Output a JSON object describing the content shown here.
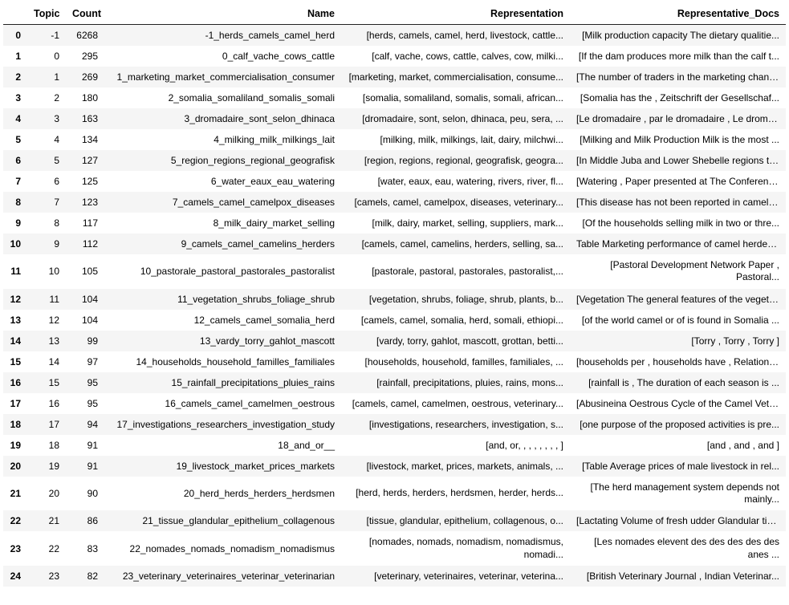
{
  "table": {
    "columns": [
      "",
      "Topic",
      "Count",
      "Name",
      "Representation",
      "Representative_Docs"
    ],
    "header_fontsize": 12.5,
    "cell_fontsize": 12,
    "row_even_bg": "#f5f5f5",
    "row_odd_bg": "#ffffff",
    "header_border_color": "#222222",
    "text_color": "#000000",
    "rows": [
      {
        "idx": "0",
        "topic": "-1",
        "count": "6268",
        "name": "-1_herds_camels_camel_herd",
        "rep": "[herds, camels, camel, herd, livestock, cattle...",
        "docs": "[Milk production capacity The dietary qualitie...",
        "wrap": false
      },
      {
        "idx": "1",
        "topic": "0",
        "count": "295",
        "name": "0_calf_vache_cows_cattle",
        "rep": "[calf, vache, cows, cattle, calves, cow, milki...",
        "docs": "[If the dam produces more milk than the calf t...",
        "wrap": false
      },
      {
        "idx": "2",
        "topic": "1",
        "count": "269",
        "name": "1_marketing_market_commercialisation_consumer",
        "rep": "[marketing, market, commercialisation, consume...",
        "docs": "[The number of traders in the marketing channe...",
        "wrap": false
      },
      {
        "idx": "3",
        "topic": "2",
        "count": "180",
        "name": "2_somalia_somaliland_somalis_somali",
        "rep": "[somalia, somaliland, somalis, somali, african...",
        "docs": "[Somalia has the , Zeitschrift der Gesellschaf...",
        "wrap": false
      },
      {
        "idx": "4",
        "topic": "3",
        "count": "163",
        "name": "3_dromadaire_sont_selon_dhinaca",
        "rep": "[dromadaire, sont, selon, dhinaca, peu, sera, ...",
        "docs": "[Le dromadaire , par le dromadaire , Le dromad...",
        "wrap": false
      },
      {
        "idx": "5",
        "topic": "4",
        "count": "134",
        "name": "4_milking_milk_milkings_lait",
        "rep": "[milking, milk, milkings, lait, dairy, milchwi...",
        "docs": "[Milking and Milk Production Milk is the most ...",
        "wrap": false
      },
      {
        "idx": "6",
        "topic": "5",
        "count": "127",
        "name": "5_region_regions_regional_geografisk",
        "rep": "[region, regions, regional, geografisk, geogra...",
        "docs": "[In Middle Juba and Lower Shebelle regions thi...",
        "wrap": false
      },
      {
        "idx": "7",
        "topic": "6",
        "count": "125",
        "name": "6_water_eaux_eau_watering",
        "rep": "[water, eaux, eau, watering, rivers, river, fl...",
        "docs": "[Watering , Paper presented at The Conference ...",
        "wrap": false
      },
      {
        "idx": "8",
        "topic": "7",
        "count": "123",
        "name": "7_camels_camel_camelpox_diseases",
        "rep": "[camels, camel, camelpox, diseases, veterinary...",
        "docs": "[This disease has not been reported in camels ...",
        "wrap": false
      },
      {
        "idx": "9",
        "topic": "8",
        "count": "117",
        "name": "8_milk_dairy_market_selling",
        "rep": "[milk, dairy, market, selling, suppliers, mark...",
        "docs": "[Of the households selling milk in two or thre...",
        "wrap": false
      },
      {
        "idx": "10",
        "topic": "9",
        "count": "112",
        "name": "9_camels_camel_camelins_herders",
        "rep": "[camels, camel, camelins, herders, selling, sa...",
        "docs": "Table Marketing performance of camel herders ...",
        "wrap": false
      },
      {
        "idx": "11",
        "topic": "10",
        "count": "105",
        "name": "10_pastorale_pastoral_pastorales_pastoralist",
        "rep": "[pastorale, pastoral, pastorales, pastoralist,...",
        "docs": "[Pastoral Development Network Paper , Pastoral...",
        "wrap": true
      },
      {
        "idx": "12",
        "topic": "11",
        "count": "104",
        "name": "11_vegetation_shrubs_foliage_shrub",
        "rep": "[vegetation, shrubs, foliage, shrub, plants, b...",
        "docs": "[Vegetation The general features of the vegeta...",
        "wrap": false
      },
      {
        "idx": "13",
        "topic": "12",
        "count": "104",
        "name": "12_camels_camel_somalia_herd",
        "rep": "[camels, camel, somalia, herd, somali, ethiopi...",
        "docs": "[of the world camel or of is found in Somalia ...",
        "wrap": false
      },
      {
        "idx": "14",
        "topic": "13",
        "count": "99",
        "name": "13_vardy_torry_gahlot_mascott",
        "rep": "[vardy, torry, gahlot, mascott, grottan, betti...",
        "docs": "[Torry , Torry , Torry ]",
        "wrap": false
      },
      {
        "idx": "15",
        "topic": "14",
        "count": "97",
        "name": "14_households_household_familles_familiales",
        "rep": "[households, household, familles, familiales, ...",
        "docs": "[households per , households have , Relationsh...",
        "wrap": false
      },
      {
        "idx": "16",
        "topic": "15",
        "count": "95",
        "name": "15_rainfall_precipitations_pluies_rains",
        "rep": "[rainfall, precipitations, pluies, rains, mons...",
        "docs": "[rainfall is , The duration of each season is ...",
        "wrap": false
      },
      {
        "idx": "17",
        "topic": "16",
        "count": "95",
        "name": "16_camels_camel_camelmen_oestrous",
        "rep": "[camels, camel, camelmen, oestrous, veterinary...",
        "docs": "[Abusineina Oestrous Cycle of the Camel Veteri...",
        "wrap": false
      },
      {
        "idx": "18",
        "topic": "17",
        "count": "94",
        "name": "17_investigations_researchers_investigation_study",
        "rep": "[investigations, researchers, investigation, s...",
        "docs": "[one purpose of the proposed activities is pre...",
        "wrap": false
      },
      {
        "idx": "19",
        "topic": "18",
        "count": "91",
        "name": "18_and_or__",
        "rep": "[and, or, , , , , , , , ]",
        "docs": "[and , and , and ]",
        "wrap": false
      },
      {
        "idx": "20",
        "topic": "19",
        "count": "91",
        "name": "19_livestock_market_prices_markets",
        "rep": "[livestock, market, prices, markets, animals, ...",
        "docs": "[Table Average prices of male livestock in rel...",
        "wrap": false
      },
      {
        "idx": "21",
        "topic": "20",
        "count": "90",
        "name": "20_herd_herds_herders_herdsmen",
        "rep": "[herd, herds, herders, herdsmen, herder, herds...",
        "docs": "[The herd management system depends not mainly...",
        "wrap": true
      },
      {
        "idx": "22",
        "topic": "21",
        "count": "86",
        "name": "21_tissue_glandular_epithelium_collagenous",
        "rep": "[tissue, glandular, epithelium, collagenous, o...",
        "docs": "[Lactating Volume of fresh udder Glandular tis...",
        "wrap": false
      },
      {
        "idx": "23",
        "topic": "22",
        "count": "83",
        "name": "22_nomades_nomads_nomadism_nomadismus",
        "rep": "[nomades, nomads, nomadism, nomadismus, nomadi...",
        "docs": "[Les nomades elevent des des des des des anes ...",
        "wrap": true
      },
      {
        "idx": "24",
        "topic": "23",
        "count": "82",
        "name": "23_veterinary_veterinaires_veterinar_veterinarian",
        "rep": "[veterinary, veterinaires, veterinar, veterina...",
        "docs": "[British Veterinary Journal , Indian Veterinar...",
        "wrap": false
      }
    ]
  }
}
